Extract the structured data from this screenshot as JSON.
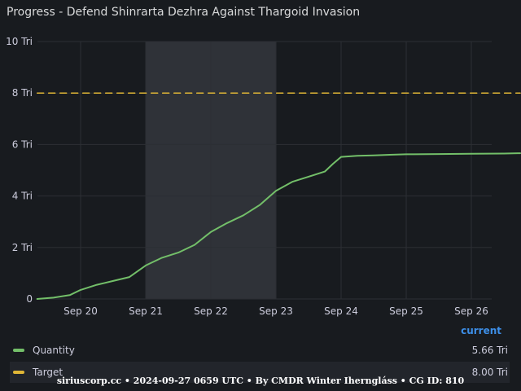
{
  "panel": {
    "title": "Progress - Defend Shinrarta Dezhra Against Thargoid Invasion"
  },
  "chart_data": {
    "type": "line",
    "title": "Progress - Defend Shinrarta Dezhra Against Thargoid Invasion",
    "y_unit": "Tri",
    "ylim": [
      0,
      10
    ],
    "y_ticks": [
      0,
      2,
      4,
      6,
      8,
      10
    ],
    "y_tick_labels": [
      "0",
      "2 Tri",
      "4 Tri",
      "6 Tri",
      "8 Tri",
      "10 Tri"
    ],
    "x_tick_labels": [
      "Sep 20",
      "Sep 21",
      "Sep 22",
      "Sep 23",
      "Sep 24",
      "Sep 25",
      "Sep 26"
    ],
    "grid": true,
    "highlight_region": {
      "from": "Sep 21",
      "to": "Sep 23",
      "color": "#2f3238"
    },
    "series": [
      {
        "name": "Quantity",
        "color": "#73bf69",
        "x": [
          "Sep 19 08:00",
          "Sep 19 14:00",
          "Sep 19 20:00",
          "Sep 20 00:00",
          "Sep 20 06:00",
          "Sep 20 12:00",
          "Sep 20 18:00",
          "Sep 21 00:00",
          "Sep 21 06:00",
          "Sep 21 12:00",
          "Sep 21 18:00",
          "Sep 22 00:00",
          "Sep 22 06:00",
          "Sep 22 12:00",
          "Sep 22 18:00",
          "Sep 23 00:00",
          "Sep 23 06:00",
          "Sep 23 12:00",
          "Sep 23 18:00",
          "Sep 23 21:00",
          "Sep 24 00:00",
          "Sep 24 06:00",
          "Sep 24 12:00",
          "Sep 24 18:00",
          "Sep 25 00:00",
          "Sep 25 12:00",
          "Sep 26 00:00",
          "Sep 26 12:00",
          "Sep 26 18:00"
        ],
        "values": [
          0.0,
          0.05,
          0.15,
          0.35,
          0.55,
          0.7,
          0.85,
          1.3,
          1.6,
          1.8,
          2.1,
          2.6,
          2.95,
          3.25,
          3.65,
          4.2,
          4.55,
          4.75,
          4.95,
          5.25,
          5.52,
          5.56,
          5.58,
          5.6,
          5.62,
          5.63,
          5.64,
          5.65,
          5.66
        ]
      },
      {
        "name": "Target",
        "color": "#e0b636",
        "style": "dashed",
        "x": [
          "Sep 19 08:00",
          "Sep 26 18:00"
        ],
        "values": [
          8,
          8
        ]
      }
    ],
    "legend": {
      "header": "current",
      "items": [
        {
          "name": "Quantity",
          "value": "5.66 Tri",
          "color": "#73bf69"
        },
        {
          "name": "Target",
          "value": "8.00 Tri",
          "color": "#e0b636"
        }
      ]
    }
  },
  "footer": {
    "text": "siriuscorp.cc • 2024-09-27 0659 UTC • By CMDR Winter Iherngláss • CG ID: 810"
  }
}
